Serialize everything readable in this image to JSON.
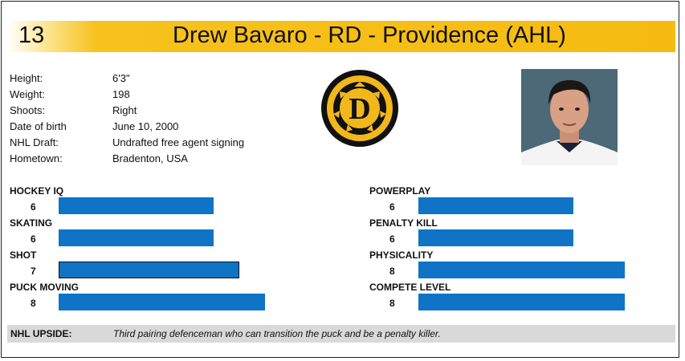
{
  "header": {
    "number": "13",
    "title": "Drew Bavaro - RD - Providence (AHL)"
  },
  "profile": [
    {
      "label": "Height:",
      "value": "6'3\""
    },
    {
      "label": "Weight:",
      "value": "198"
    },
    {
      "label": "Shoots:",
      "value": "Right"
    },
    {
      "label": "Date of birth",
      "value": "June 10, 2000"
    },
    {
      "label": "NHL Draft:",
      "value": "Undrafted free agent signing"
    },
    {
      "label": "Hometown:",
      "value": "Bradenton, USA"
    }
  ],
  "logo": {
    "icon": "bruins-d-logo-icon",
    "letter": "D",
    "colors": {
      "gold": "#f2b81b",
      "black": "#111111"
    }
  },
  "photo": {
    "icon": "player-headshot"
  },
  "skills_scale_max": 10,
  "skills_left": [
    {
      "label": "HOCKEY IQ",
      "value": 6
    },
    {
      "label": "SKATING",
      "value": 6
    },
    {
      "label": "SHOT",
      "value": 7
    },
    {
      "label": "PUCK MOVING",
      "value": 8
    }
  ],
  "skills_right": [
    {
      "label": "POWERPLAY",
      "value": 6
    },
    {
      "label": "PENALTY KILL",
      "value": 6
    },
    {
      "label": "PHYSICALITY",
      "value": 8
    },
    {
      "label": "COMPETE LEVEL",
      "value": 8
    }
  ],
  "bar_color": "#0f73c6",
  "upside": {
    "label": "NHL UPSIDE:",
    "text": "Third pairing defenceman who can transition the puck and be a penalty killer."
  }
}
